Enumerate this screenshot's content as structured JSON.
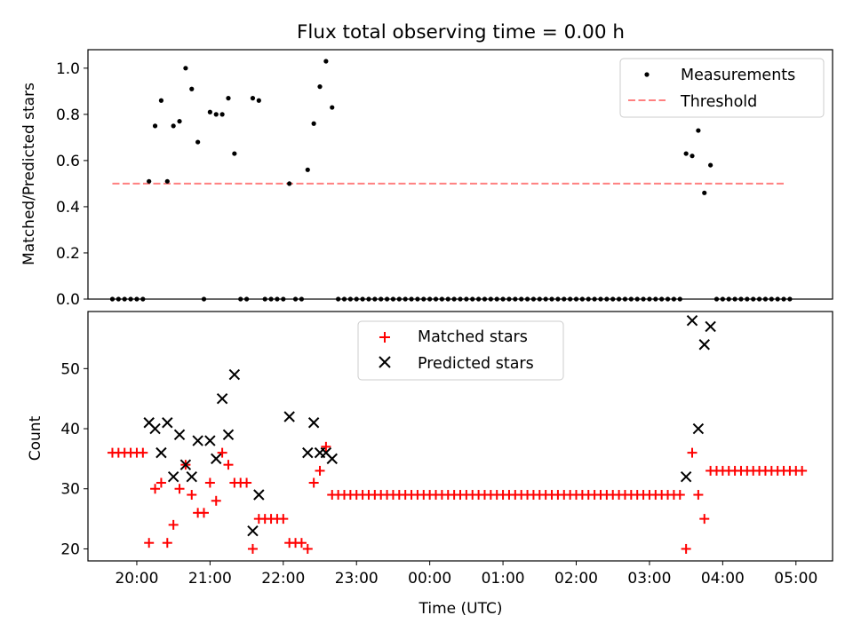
{
  "title": "Flux total observing time = 0.00 h",
  "chart_data": [
    {
      "type": "scatter",
      "ylabel": "Matched/Predicted stars",
      "xlim": [
        -20,
        590
      ],
      "ylim": [
        0,
        1.08
      ],
      "yticks": [
        0.0,
        0.2,
        0.4,
        0.6,
        0.8,
        1.0
      ],
      "legend": {
        "position": "top-right",
        "measurements_label": "Measurements",
        "threshold_label": "Threshold"
      },
      "threshold": {
        "value": 0.5,
        "x_start": 0,
        "x_end": 550,
        "color": "#ff8080"
      },
      "measurements": [
        [
          0,
          0
        ],
        [
          5,
          0
        ],
        [
          10,
          0
        ],
        [
          15,
          0
        ],
        [
          20,
          0
        ],
        [
          25,
          0
        ],
        [
          30,
          0.51
        ],
        [
          35,
          0.75
        ],
        [
          40,
          0.86
        ],
        [
          45,
          0.51
        ],
        [
          50,
          0.75
        ],
        [
          55,
          0.77
        ],
        [
          60,
          1.0
        ],
        [
          65,
          0.91
        ],
        [
          70,
          0.68
        ],
        [
          75,
          0
        ],
        [
          80,
          0.81
        ],
        [
          85,
          0.8
        ],
        [
          90,
          0.8
        ],
        [
          95,
          0.87
        ],
        [
          100,
          0.63
        ],
        [
          105,
          0
        ],
        [
          110,
          0
        ],
        [
          115,
          0.87
        ],
        [
          120,
          0.86
        ],
        [
          125,
          0
        ],
        [
          130,
          0
        ],
        [
          135,
          0
        ],
        [
          140,
          0
        ],
        [
          145,
          0.5
        ],
        [
          150,
          0
        ],
        [
          155,
          0
        ],
        [
          160,
          0.56
        ],
        [
          165,
          0.76
        ],
        [
          170,
          0.92
        ],
        [
          175,
          1.03
        ],
        [
          180,
          0.83
        ],
        [
          185,
          0
        ],
        [
          190,
          0
        ],
        [
          195,
          0
        ],
        [
          200,
          0
        ],
        [
          205,
          0
        ],
        [
          210,
          0
        ],
        [
          215,
          0
        ],
        [
          220,
          0
        ],
        [
          225,
          0
        ],
        [
          230,
          0
        ],
        [
          235,
          0
        ],
        [
          240,
          0
        ],
        [
          245,
          0
        ],
        [
          250,
          0
        ],
        [
          255,
          0
        ],
        [
          260,
          0
        ],
        [
          265,
          0
        ],
        [
          270,
          0
        ],
        [
          275,
          0
        ],
        [
          280,
          0
        ],
        [
          285,
          0
        ],
        [
          290,
          0
        ],
        [
          295,
          0
        ],
        [
          300,
          0
        ],
        [
          305,
          0
        ],
        [
          310,
          0
        ],
        [
          315,
          0
        ],
        [
          320,
          0
        ],
        [
          325,
          0
        ],
        [
          330,
          0
        ],
        [
          335,
          0
        ],
        [
          340,
          0
        ],
        [
          345,
          0
        ],
        [
          350,
          0
        ],
        [
          355,
          0
        ],
        [
          360,
          0
        ],
        [
          365,
          0
        ],
        [
          370,
          0
        ],
        [
          375,
          0
        ],
        [
          380,
          0
        ],
        [
          385,
          0
        ],
        [
          390,
          0
        ],
        [
          395,
          0
        ],
        [
          400,
          0
        ],
        [
          405,
          0
        ],
        [
          410,
          0
        ],
        [
          415,
          0
        ],
        [
          420,
          0
        ],
        [
          425,
          0
        ],
        [
          430,
          0
        ],
        [
          435,
          0
        ],
        [
          440,
          0
        ],
        [
          445,
          0
        ],
        [
          450,
          0
        ],
        [
          455,
          0
        ],
        [
          460,
          0
        ],
        [
          465,
          0
        ],
        [
          470,
          0.63
        ],
        [
          475,
          0.62
        ],
        [
          480,
          0.73
        ],
        [
          485,
          0.46
        ],
        [
          490,
          0.58
        ],
        [
          495,
          0
        ],
        [
          500,
          0
        ],
        [
          505,
          0
        ],
        [
          510,
          0
        ],
        [
          515,
          0
        ],
        [
          520,
          0
        ],
        [
          525,
          0
        ],
        [
          530,
          0
        ],
        [
          535,
          0
        ],
        [
          540,
          0
        ],
        [
          545,
          0
        ],
        [
          550,
          0
        ],
        [
          555,
          0
        ]
      ]
    },
    {
      "type": "scatter",
      "xlabel": "Time (UTC)",
      "ylabel": "Count",
      "xlim": [
        -20,
        590
      ],
      "ylim": [
        18,
        59.5
      ],
      "yticks": [
        20,
        30,
        40,
        50
      ],
      "xticks": [
        {
          "pos": 20,
          "label": "20:00"
        },
        {
          "pos": 80,
          "label": "21:00"
        },
        {
          "pos": 140,
          "label": "22:00"
        },
        {
          "pos": 200,
          "label": "23:00"
        },
        {
          "pos": 260,
          "label": "00:00"
        },
        {
          "pos": 320,
          "label": "01:00"
        },
        {
          "pos": 380,
          "label": "02:00"
        },
        {
          "pos": 440,
          "label": "03:00"
        },
        {
          "pos": 500,
          "label": "04:00"
        },
        {
          "pos": 560,
          "label": "05:00"
        }
      ],
      "legend": {
        "position": "top-center",
        "matched_label": "Matched stars",
        "predicted_label": "Predicted stars"
      },
      "colors": {
        "matched": "#ff0000",
        "predicted": "#000000"
      },
      "matched": [
        [
          0,
          36
        ],
        [
          5,
          36
        ],
        [
          10,
          36
        ],
        [
          15,
          36
        ],
        [
          20,
          36
        ],
        [
          25,
          36
        ],
        [
          30,
          21
        ],
        [
          35,
          30
        ],
        [
          40,
          31
        ],
        [
          45,
          21
        ],
        [
          50,
          24
        ],
        [
          55,
          30
        ],
        [
          60,
          34
        ],
        [
          65,
          29
        ],
        [
          70,
          26
        ],
        [
          75,
          26
        ],
        [
          80,
          31
        ],
        [
          85,
          28
        ],
        [
          90,
          36
        ],
        [
          95,
          34
        ],
        [
          100,
          31
        ],
        [
          105,
          31
        ],
        [
          110,
          31
        ],
        [
          115,
          20
        ],
        [
          120,
          25
        ],
        [
          125,
          25
        ],
        [
          130,
          25
        ],
        [
          135,
          25
        ],
        [
          140,
          25
        ],
        [
          145,
          21
        ],
        [
          150,
          21
        ],
        [
          155,
          21
        ],
        [
          160,
          20
        ],
        [
          165,
          31
        ],
        [
          170,
          33
        ],
        [
          175,
          37
        ],
        [
          180,
          29
        ],
        [
          185,
          29
        ],
        [
          190,
          29
        ],
        [
          195,
          29
        ],
        [
          200,
          29
        ],
        [
          205,
          29
        ],
        [
          210,
          29
        ],
        [
          215,
          29
        ],
        [
          220,
          29
        ],
        [
          225,
          29
        ],
        [
          230,
          29
        ],
        [
          235,
          29
        ],
        [
          240,
          29
        ],
        [
          245,
          29
        ],
        [
          250,
          29
        ],
        [
          255,
          29
        ],
        [
          260,
          29
        ],
        [
          265,
          29
        ],
        [
          270,
          29
        ],
        [
          275,
          29
        ],
        [
          280,
          29
        ],
        [
          285,
          29
        ],
        [
          290,
          29
        ],
        [
          295,
          29
        ],
        [
          300,
          29
        ],
        [
          305,
          29
        ],
        [
          310,
          29
        ],
        [
          315,
          29
        ],
        [
          320,
          29
        ],
        [
          325,
          29
        ],
        [
          330,
          29
        ],
        [
          335,
          29
        ],
        [
          340,
          29
        ],
        [
          345,
          29
        ],
        [
          350,
          29
        ],
        [
          355,
          29
        ],
        [
          360,
          29
        ],
        [
          365,
          29
        ],
        [
          370,
          29
        ],
        [
          375,
          29
        ],
        [
          380,
          29
        ],
        [
          385,
          29
        ],
        [
          390,
          29
        ],
        [
          395,
          29
        ],
        [
          400,
          29
        ],
        [
          405,
          29
        ],
        [
          410,
          29
        ],
        [
          415,
          29
        ],
        [
          420,
          29
        ],
        [
          425,
          29
        ],
        [
          430,
          29
        ],
        [
          435,
          29
        ],
        [
          440,
          29
        ],
        [
          445,
          29
        ],
        [
          450,
          29
        ],
        [
          455,
          29
        ],
        [
          460,
          29
        ],
        [
          465,
          29
        ],
        [
          470,
          20
        ],
        [
          475,
          36
        ],
        [
          480,
          29
        ],
        [
          485,
          25
        ],
        [
          490,
          33
        ],
        [
          495,
          33
        ],
        [
          500,
          33
        ],
        [
          505,
          33
        ],
        [
          510,
          33
        ],
        [
          515,
          33
        ],
        [
          520,
          33
        ],
        [
          525,
          33
        ],
        [
          530,
          33
        ],
        [
          535,
          33
        ],
        [
          540,
          33
        ],
        [
          545,
          33
        ],
        [
          550,
          33
        ],
        [
          555,
          33
        ],
        [
          560,
          33
        ],
        [
          565,
          33
        ]
      ],
      "predicted": [
        [
          30,
          41
        ],
        [
          35,
          40
        ],
        [
          40,
          36
        ],
        [
          45,
          41
        ],
        [
          50,
          32
        ],
        [
          55,
          39
        ],
        [
          60,
          34
        ],
        [
          65,
          32
        ],
        [
          70,
          38
        ],
        [
          80,
          38
        ],
        [
          85,
          35
        ],
        [
          90,
          45
        ],
        [
          95,
          39
        ],
        [
          100,
          49
        ],
        [
          115,
          23
        ],
        [
          120,
          29
        ],
        [
          145,
          42
        ],
        [
          160,
          36
        ],
        [
          165,
          41
        ],
        [
          170,
          36
        ],
        [
          175,
          36
        ],
        [
          180,
          35
        ],
        [
          470,
          32
        ],
        [
          475,
          58
        ],
        [
          480,
          40
        ],
        [
          485,
          54
        ],
        [
          490,
          57
        ]
      ]
    }
  ]
}
